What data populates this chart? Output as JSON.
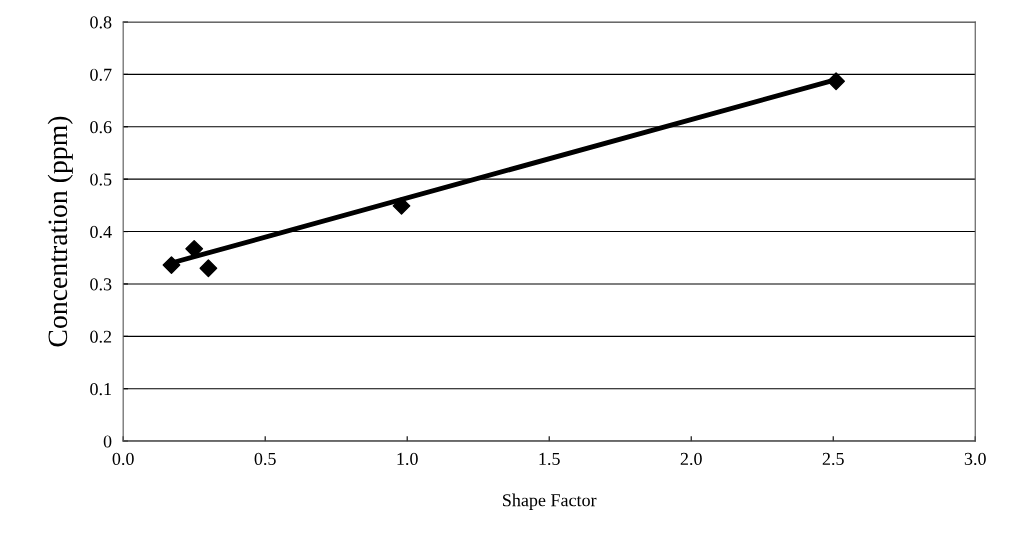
{
  "chart_data": {
    "type": "scatter",
    "xlabel": "Shape Factor",
    "ylabel": "Concentration (ppm)",
    "xlim": [
      0,
      3
    ],
    "ylim": [
      0,
      0.8
    ],
    "xticks": [
      {
        "value": 0,
        "label": "0.0"
      },
      {
        "value": 0.5,
        "label": "0.5"
      },
      {
        "value": 1,
        "label": "1.0"
      },
      {
        "value": 1.5,
        "label": "1.5"
      },
      {
        "value": 2,
        "label": "2.0"
      },
      {
        "value": 2.5,
        "label": "2.5"
      },
      {
        "value": 3,
        "label": "3.0"
      }
    ],
    "yticks": [
      0,
      0.1,
      0.2,
      0.3,
      0.4,
      0.5,
      0.6,
      0.7,
      0.8
    ],
    "grid": "y",
    "marker": "diamond",
    "series": [
      {
        "type": "line",
        "marker": "none",
        "color": "#000000",
        "x": [
          0.17,
          2.51
        ],
        "values": [
          0.34,
          0.69
        ]
      },
      {
        "color": "#000000",
        "x": [
          0.17,
          0.25,
          0.3,
          0.98,
          2.51
        ],
        "values": [
          0.336,
          0.367,
          0.33,
          0.449,
          0.687
        ]
      }
    ]
  }
}
